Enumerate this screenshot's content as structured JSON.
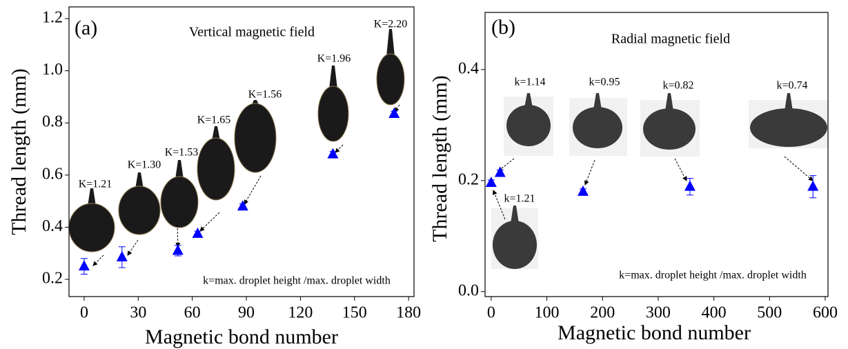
{
  "chart_data": [
    {
      "type": "scatter",
      "panel_label": "(a)",
      "title": "Vertical magnetic field",
      "note": "k=max. droplet height /max. droplet width",
      "x_label": "Magnetic bond number",
      "y_label": "Thread length (mm)",
      "xlim": [
        -8.4,
        183
      ],
      "ylim": [
        0.134,
        1.245
      ],
      "xticks": [
        0,
        30,
        60,
        90,
        120,
        150,
        180
      ],
      "yticks": [
        0.2,
        0.4,
        0.6,
        0.8,
        {
          "value": 1,
          "label": "1.0"
        },
        1.2
      ],
      "series": [
        {
          "color": "#0000ff",
          "x": [
            0,
            21,
            52,
            63,
            88,
            138,
            172
          ],
          "values": [
            0.25,
            0.285,
            0.31,
            0.375,
            0.48,
            0.68,
            0.835
          ],
          "errors": [
            0.03,
            0.04,
            0.02,
            0.01,
            0.01,
            0.01,
            0.01
          ]
        }
      ],
      "droplet_labels": [
        "K=1.21",
        "K=1.30",
        "K=1.53",
        "K=1.65",
        "K=1.56",
        "K=1.96",
        "K=2.20"
      ]
    },
    {
      "type": "scatter",
      "panel_label": "(b)",
      "title": "Radial magnetic field",
      "note": "k=max. droplet height /max. droplet width",
      "x_label": "Magnetic bond number",
      "y_label": "Thread length (mm)",
      "xlim": [
        -11,
        605
      ],
      "ylim": [
        -0.009,
        0.503
      ],
      "xticks": [
        0,
        100,
        200,
        300,
        400,
        500,
        600
      ],
      "yticks": [
        {
          "value": 0,
          "label": "0.0"
        },
        0.2,
        0.4
      ],
      "series": [
        {
          "color": "#0000ff",
          "x": [
            0,
            16,
            165,
            357,
            578
          ],
          "values": [
            0.196,
            0.214,
            0.18,
            0.189,
            0.189
          ],
          "errors": [
            0.005,
            0.005,
            0.005,
            0.015,
            0.02
          ]
        }
      ],
      "droplet_labels": [
        "k=1.14",
        "k=0.95",
        "k=0.82",
        "k=0.74",
        "k=1.21"
      ]
    }
  ]
}
